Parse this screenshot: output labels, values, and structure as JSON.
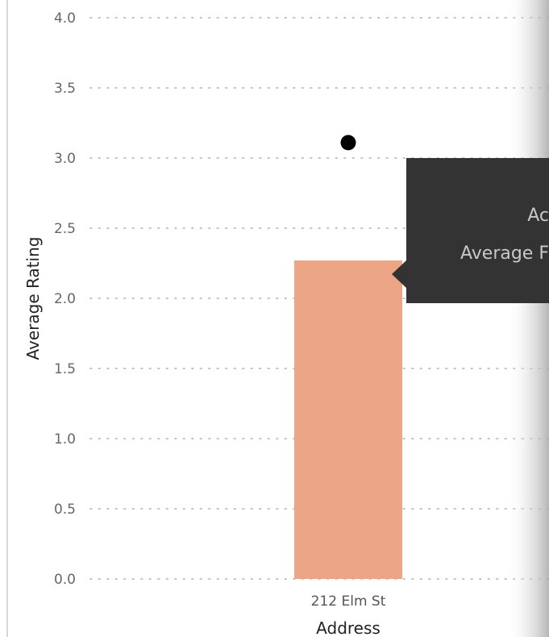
{
  "chart_data": {
    "type": "bar",
    "categories": [
      "212 Elm St"
    ],
    "series": [
      {
        "values": [
          2.27
        ],
        "color": "#eda685"
      }
    ],
    "marker": {
      "values": [
        3.11
      ],
      "color": "#000000"
    },
    "xlabel": "Address",
    "ylabel": "Average Rating",
    "ylim": [
      0,
      4.0
    ],
    "yticks": [
      0.0,
      0.5,
      1.0,
      1.5,
      2.0,
      2.5,
      3.0,
      3.5,
      4.0
    ],
    "ytick_labels": [
      "0.0",
      "0.5",
      "1.0",
      "1.5",
      "2.0",
      "2.5",
      "3.0",
      "3.5",
      "4.0"
    ],
    "grid": true,
    "legend": "none"
  },
  "tooltip": {
    "line1": "Ac",
    "line2": "Average F",
    "background": "#333333"
  }
}
